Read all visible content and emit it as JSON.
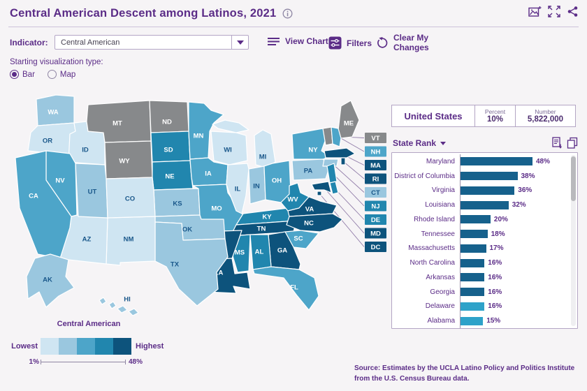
{
  "header": {
    "title": "Central American Descent among Latinos, 2021"
  },
  "toolbar": {
    "indicator_label": "Indicator:",
    "indicator_value": "Central American",
    "view_chart_label": "View Chart",
    "filters_label": "Filters",
    "clear_label_line1": "Clear My",
    "clear_label_line2": "Changes"
  },
  "viz_type": {
    "label": "Starting visualization type:",
    "options": [
      {
        "label": "Bar",
        "selected": true
      },
      {
        "label": "Map",
        "selected": false
      }
    ]
  },
  "legend": {
    "title": "Central American",
    "lowest_label": "Lowest",
    "highest_label": "Highest",
    "min": "1%",
    "max": "48%"
  },
  "stats": {
    "region": "United States",
    "percent_label": "Percent",
    "percent_value": "10%",
    "number_label": "Number",
    "number_value": "5,822,000"
  },
  "rank": {
    "label": "State Rank"
  },
  "source": {
    "text": "Source: Estimates by the UCLA Latino Policy and Politics Institute from the U.S. Census Bureau data."
  },
  "style": {
    "accent_purple": "#5b2c87",
    "bucket_colors": [
      "#cfe5f2",
      "#9ac7df",
      "#4da5c9",
      "#2186ae",
      "#0d537c"
    ],
    "no_data_color": "#87898b",
    "map_label_dark": "#19578a",
    "map_label_light": "#ffffff",
    "bar_color_dark": "#16618c",
    "bar_color_light": "#2ea2c9",
    "connector_color": "#907ca8"
  },
  "chart_data": [
    {
      "type": "choropleth",
      "title": "Central American Descent among Latinos, 2021",
      "unit": "percent of Latinos",
      "range": {
        "min": "1%",
        "max": "48%"
      },
      "no_data_states": [
        "MT",
        "ND",
        "WY",
        "VT",
        "ME"
      ],
      "callout_states": [
        "VT",
        "NH",
        "MA",
        "RI",
        "CT",
        "NJ",
        "DE",
        "MD",
        "DC"
      ],
      "white_label_states": [
        "WA"
      ],
      "state_buckets": {
        "WA": 2,
        "OR": 1,
        "CA": 3,
        "NV": 3,
        "ID": 1,
        "MT": 0,
        "WY": 0,
        "UT": 2,
        "CO": 1,
        "AZ": 1,
        "NM": 1,
        "ND": 0,
        "SD": 4,
        "NE": 4,
        "KS": 2,
        "OK": 2,
        "TX": 2,
        "MN": 3,
        "IA": 3,
        "MO": 3,
        "WI": 1,
        "IL": 1,
        "MI": 1,
        "IN": 2,
        "OH": 3,
        "KY": 4,
        "TN": 5,
        "MS": 4,
        "AL": 4,
        "AR": 5,
        "LA": 5,
        "GA": 5,
        "FL": 3,
        "SC": 3,
        "NC": 5,
        "VA": 5,
        "WV": 4,
        "PA": 2,
        "NY": 3,
        "ME": 0,
        "VT": 0,
        "NH": 3,
        "MA": 5,
        "RI": 5,
        "CT": 2,
        "NJ": 4,
        "DE": 4,
        "MD": 5,
        "DC": 5,
        "AK": 2,
        "HI": 2
      }
    },
    {
      "type": "bar",
      "title": "State Rank",
      "unit": "%",
      "xlim": [
        0,
        48
      ],
      "categories": [
        "Maryland",
        "District of Columbia",
        "Virginia",
        "Louisiana",
        "Rhode Island",
        "Tennessee",
        "Massachusetts",
        "North Carolina",
        "Arkansas",
        "Georgia",
        "Delaware",
        "Alabama"
      ],
      "values": [
        48,
        38,
        36,
        32,
        20,
        18,
        17,
        16,
        16,
        16,
        16,
        15
      ],
      "labels": [
        "48%",
        "38%",
        "36%",
        "32%",
        "20%",
        "18%",
        "17%",
        "16%",
        "16%",
        "16%",
        "16%",
        "15%"
      ],
      "bar_shades": [
        "dark",
        "dark",
        "dark",
        "dark",
        "dark",
        "dark",
        "dark",
        "dark",
        "dark",
        "dark",
        "light",
        "light"
      ]
    }
  ]
}
